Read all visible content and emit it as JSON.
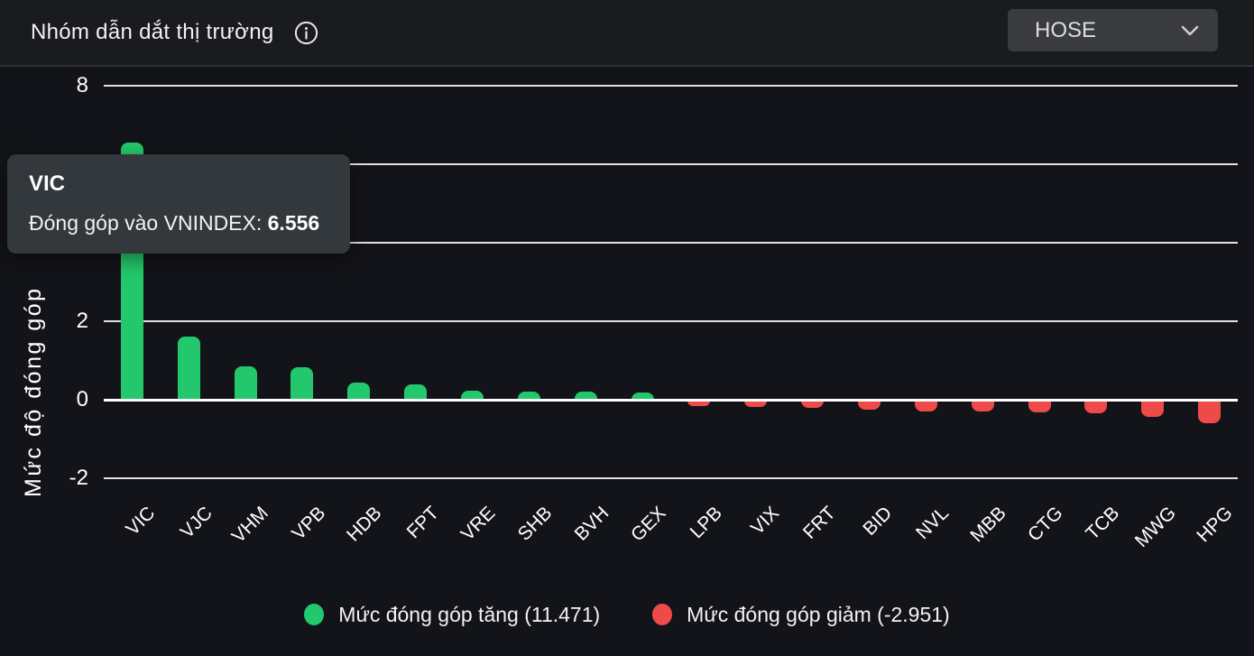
{
  "header": {
    "title": "Nhóm dẫn dắt thị trường",
    "exchange": "HOSE"
  },
  "tooltip": {
    "ticker": "VIC",
    "label": "Đóng góp vào VNINDEX:",
    "value": "6.556"
  },
  "chart_data": {
    "type": "bar",
    "title": "Nhóm dẫn dắt thị trường",
    "ylabel": "Mức độ đóng góp",
    "categories": [
      "VIC",
      "VJC",
      "VHM",
      "VPB",
      "HDB",
      "FPT",
      "VRE",
      "SHB",
      "BVH",
      "GEX",
      "LPB",
      "VIX",
      "FRT",
      "BID",
      "NVL",
      "MBB",
      "CTG",
      "TCB",
      "MWG",
      "HPG"
    ],
    "values": [
      6.556,
      1.61,
      0.84,
      0.82,
      0.43,
      0.4,
      0.22,
      0.21,
      0.2,
      0.18,
      -0.14,
      -0.17,
      -0.18,
      -0.22,
      -0.27,
      -0.28,
      -0.31,
      -0.32,
      -0.42,
      -0.58
    ],
    "yticks": [
      8,
      6,
      4,
      2,
      0,
      -2
    ],
    "ylim": [
      -2.6,
      8.8
    ],
    "grid": true,
    "bar_colors": {
      "positive": "#24c86c",
      "negative": "#ef4a4a"
    },
    "legend_position": "bottom",
    "legend": [
      {
        "label": "Mức đóng góp tăng (11.471)",
        "color": "#24c86c"
      },
      {
        "label": "Mức đóng góp giảm (-2.951)",
        "color": "#ef4a4a"
      }
    ],
    "highlighted_category": "VIC",
    "highlighted_value": "6.556"
  }
}
